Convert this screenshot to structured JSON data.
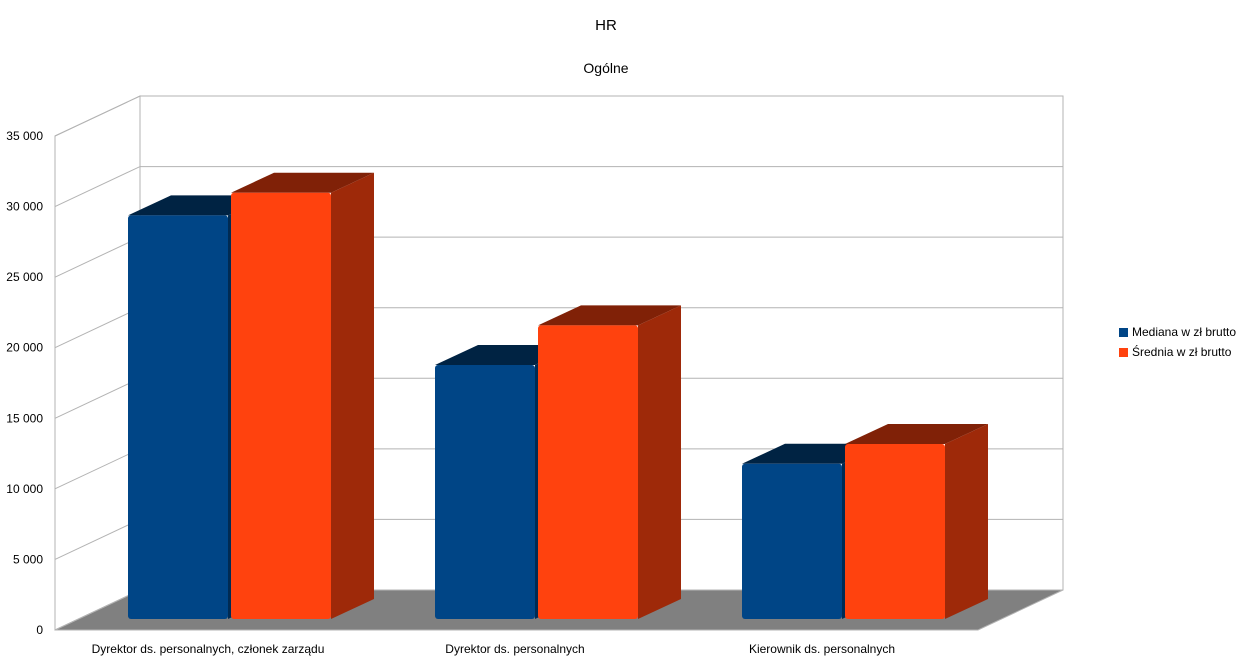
{
  "chart_data": {
    "type": "bar",
    "title": "HR",
    "subtitle": "Ogólne",
    "categories": [
      "Dyrektor ds. personalnych, członek zarządu",
      "Dyrektor ds. personalnych",
      "Kierownik ds. personalnych"
    ],
    "series": [
      {
        "name": "Mediana w zł brutto",
        "values": [
          28600,
          18000,
          11000
        ],
        "color": "#004586"
      },
      {
        "name": "Średnia w zł brutto",
        "values": [
          30200,
          20800,
          12400
        ],
        "color": "#ff420e"
      }
    ],
    "ylim": [
      0,
      35000
    ],
    "yticks": [
      "0",
      "5 000",
      "10 000",
      "15 000",
      "20 000",
      "25 000",
      "30 000",
      "35 000"
    ],
    "grid": true,
    "style": "3d",
    "legend_position": "right"
  }
}
